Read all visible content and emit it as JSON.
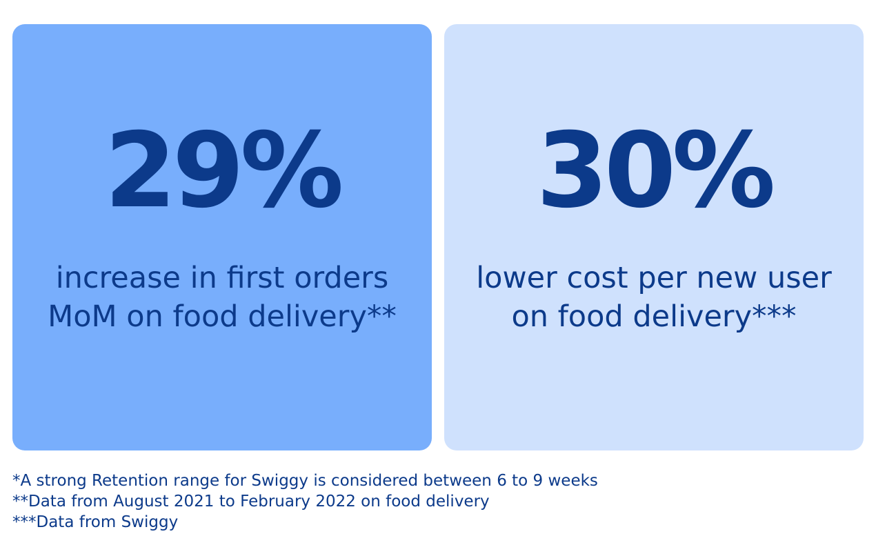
{
  "cards": [
    {
      "value": "29%",
      "caption_line1": "increase in first orders",
      "caption_line2": "MoM on food delivery**"
    },
    {
      "value": "30%",
      "caption_line1": "lower cost per new user",
      "caption_line2": "on food delivery***"
    }
  ],
  "footnotes": [
    "*A strong Retention range for Swiggy is considered between 6 to 9 weeks",
    "**Data from August 2021 to February 2022 on food delivery",
    "***Data from Swiggy"
  ],
  "colors": {
    "card_left_bg": "#78aefc",
    "card_right_bg": "#cfe1fd",
    "text": "#0c3a8a"
  }
}
